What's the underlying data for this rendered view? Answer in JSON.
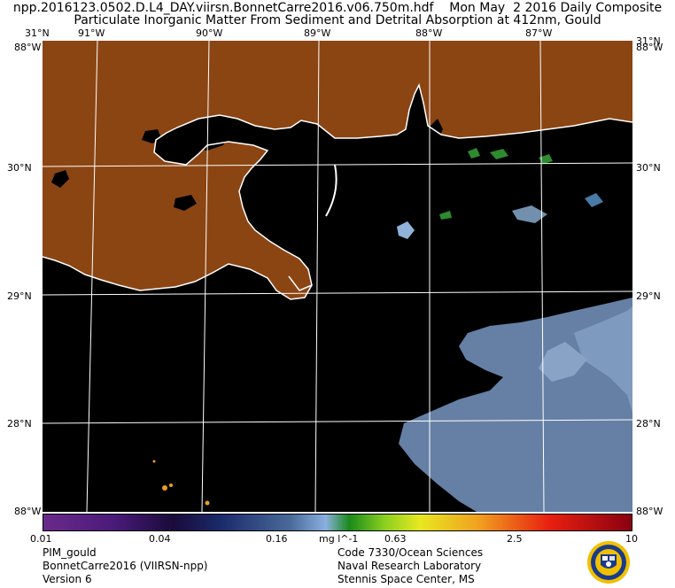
{
  "header": {
    "line1": "npp.2016123.0502.D.L4_DAY.viirsn.BonnetCarre2016.v06.750m.hdf    Mon May  2 2016 Daily Composite",
    "line2": "Particulate Inorganic Matter From Sediment and Detrital Absorption at 412nm, Gould"
  },
  "map": {
    "top_lat_left": "31°N",
    "top_lat_right": "31°N",
    "lon_labels": [
      "91°W",
      "90°W",
      "89°W",
      "88°W",
      "87°W"
    ],
    "lat_labels_left": [
      "30°N",
      "29°N",
      "28°N"
    ],
    "lat_labels_right": [
      "30°N",
      "29°N",
      "28°N"
    ],
    "corner_top_left": "88°W",
    "corner_top_right": "88°W",
    "corner_bottom_left": "88°W",
    "corner_bottom_right": "88°W",
    "land_color": "#8b4513",
    "water_color": "#000000",
    "coast_color": "#ffffff"
  },
  "colorbar": {
    "ticks": [
      "0.01",
      "0.04",
      "0.16",
      "0.63",
      "2.5",
      "10"
    ],
    "units": "mg l^-1"
  },
  "footer": {
    "left": [
      "PIM_gould",
      "BonnetCarre2016 (VIIRSN-npp)",
      "Version 6"
    ],
    "right": [
      "Code 7330/Ocean Sciences",
      "Naval Research Laboratory",
      "Stennis Space Center, MS"
    ]
  }
}
